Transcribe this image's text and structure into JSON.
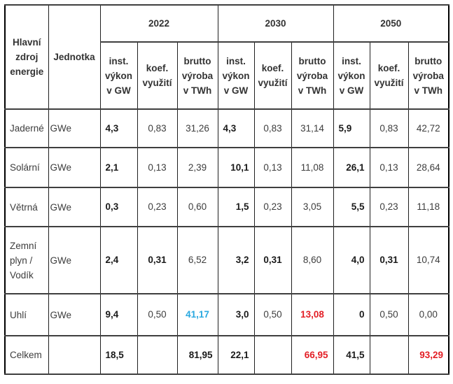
{
  "chart_data": {
    "type": "table",
    "corner_header": "Hlavní\nzdroj\nenergie",
    "unit_header": "Jednotka",
    "year_groups": [
      "2022",
      "2030",
      "2050"
    ],
    "sub_headers": [
      "inst.\nvýkon\nv GW",
      "koef.\nvyužití",
      "brutto\nvýroba\nv TWh"
    ],
    "colors": {
      "highlight_blue": "#29a8e0",
      "highlight_red": "#e31e25",
      "regular_text": "#3d3d3d",
      "bold_text": "#1a1a1a"
    },
    "rows": [
      {
        "label": "Jaderné",
        "unit": "GWe",
        "values": [
          {
            "v": "4,3",
            "bold": true,
            "align": "l"
          },
          {
            "v": "0,83",
            "bold": false,
            "align": "c"
          },
          {
            "v": "31,26",
            "bold": false,
            "align": "c"
          },
          {
            "v": "4,3",
            "bold": true,
            "align": "l"
          },
          {
            "v": "0,83",
            "bold": false,
            "align": "c"
          },
          {
            "v": "31,14",
            "bold": false,
            "align": "c"
          },
          {
            "v": "5,9",
            "bold": true,
            "align": "l"
          },
          {
            "v": "0,83",
            "bold": false,
            "align": "c"
          },
          {
            "v": "42,72",
            "bold": false,
            "align": "c"
          }
        ]
      },
      {
        "label": "Solární",
        "unit": "GWe",
        "values": [
          {
            "v": "2,1",
            "bold": true,
            "align": "l"
          },
          {
            "v": "0,13",
            "bold": false,
            "align": "c"
          },
          {
            "v": "2,39",
            "bold": false,
            "align": "c"
          },
          {
            "v": "10,1",
            "bold": true,
            "align": "r"
          },
          {
            "v": "0,13",
            "bold": false,
            "align": "c"
          },
          {
            "v": "11,08",
            "bold": false,
            "align": "c"
          },
          {
            "v": "26,1",
            "bold": true,
            "align": "r"
          },
          {
            "v": "0,13",
            "bold": false,
            "align": "c"
          },
          {
            "v": "28,64",
            "bold": false,
            "align": "c"
          }
        ]
      },
      {
        "label": "Větrná",
        "unit": "GWe",
        "values": [
          {
            "v": "0,3",
            "bold": true,
            "align": "l"
          },
          {
            "v": "0,23",
            "bold": false,
            "align": "c"
          },
          {
            "v": "0,60",
            "bold": false,
            "align": "c"
          },
          {
            "v": "1,5",
            "bold": true,
            "align": "r"
          },
          {
            "v": "0,23",
            "bold": false,
            "align": "c"
          },
          {
            "v": "3,05",
            "bold": false,
            "align": "c"
          },
          {
            "v": "5,5",
            "bold": true,
            "align": "r"
          },
          {
            "v": "0,23",
            "bold": false,
            "align": "c"
          },
          {
            "v": "11,18",
            "bold": false,
            "align": "c"
          }
        ]
      },
      {
        "label": "Zemní\nplyn /\nVodík",
        "unit": "GWe",
        "values": [
          {
            "v": "2,4",
            "bold": true,
            "align": "l"
          },
          {
            "v": "0,31",
            "bold": true,
            "align": "c"
          },
          {
            "v": "6,52",
            "bold": false,
            "align": "c"
          },
          {
            "v": "3,2",
            "bold": true,
            "align": "r"
          },
          {
            "v": "0,31",
            "bold": true,
            "align": "c"
          },
          {
            "v": "8,60",
            "bold": false,
            "align": "c"
          },
          {
            "v": "4,0",
            "bold": true,
            "align": "r"
          },
          {
            "v": "0,31",
            "bold": true,
            "align": "c"
          },
          {
            "v": "10,74",
            "bold": false,
            "align": "c"
          }
        ]
      },
      {
        "label": "Uhlí",
        "unit": "GWe",
        "values": [
          {
            "v": "9,4",
            "bold": true,
            "align": "l"
          },
          {
            "v": "0,50",
            "bold": false,
            "align": "c"
          },
          {
            "v": "41,17",
            "bold": true,
            "align": "c",
            "color": "blue"
          },
          {
            "v": "3,0",
            "bold": true,
            "align": "r"
          },
          {
            "v": "0,50",
            "bold": false,
            "align": "c"
          },
          {
            "v": "13,08",
            "bold": true,
            "align": "c",
            "color": "red"
          },
          {
            "v": "0",
            "bold": true,
            "align": "r"
          },
          {
            "v": "0,50",
            "bold": false,
            "align": "c"
          },
          {
            "v": "0,00",
            "bold": false,
            "align": "c"
          }
        ]
      },
      {
        "label": "Celkem",
        "unit": "",
        "values": [
          {
            "v": "18,5",
            "bold": true,
            "align": "l"
          },
          {
            "v": "",
            "bold": false,
            "align": "c"
          },
          {
            "v": "81,95",
            "bold": true,
            "align": "r"
          },
          {
            "v": "22,1",
            "bold": true,
            "align": "r"
          },
          {
            "v": "",
            "bold": false,
            "align": "c"
          },
          {
            "v": "66,95",
            "bold": true,
            "align": "r",
            "color": "red"
          },
          {
            "v": "41,5",
            "bold": true,
            "align": "r"
          },
          {
            "v": "",
            "bold": false,
            "align": "c"
          },
          {
            "v": "93,29",
            "bold": true,
            "align": "r",
            "color": "red"
          }
        ]
      }
    ]
  }
}
